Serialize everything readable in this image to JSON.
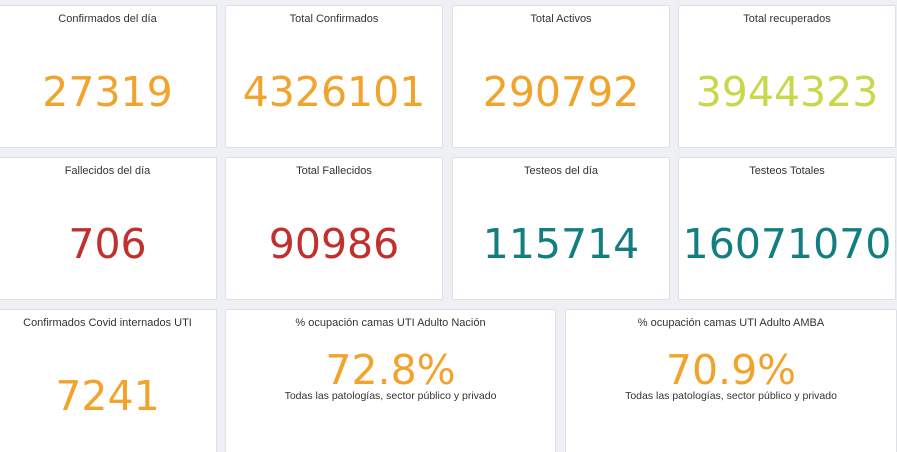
{
  "colors": {
    "orange": "#f2a32b",
    "lime": "#c9d74a",
    "red": "#c0302e",
    "teal": "#127e7f"
  },
  "cards": [
    {
      "label": "Confirmados del día",
      "value": "27319",
      "color": "#f2a32b"
    },
    {
      "label": "Total Confirmados",
      "value": "4326101",
      "color": "#f2a32b"
    },
    {
      "label": "Total Activos",
      "value": "290792",
      "color": "#f2a32b"
    },
    {
      "label": "Total recuperados",
      "value": "3944323",
      "color": "#c9d74a"
    },
    {
      "label": "Fallecidos del día",
      "value": "706",
      "color": "#c0302e"
    },
    {
      "label": "Total Fallecidos",
      "value": "90986",
      "color": "#c0302e"
    },
    {
      "label": "Testeos del día",
      "value": "115714",
      "color": "#127e7f"
    },
    {
      "label": "Testeos Totales",
      "value": "16071070",
      "color": "#127e7f"
    },
    {
      "label": "Confirmados Covid internados UTI",
      "value": "7241",
      "color": "#f2a32b"
    },
    {
      "label": "% ocupación camas UTI Adulto Nación",
      "value": "72.8%",
      "color": "#f2a32b",
      "note": "Todas las patologías, sector público y privado"
    },
    {
      "label": "% ocupación camas UTI Adulto AMBA",
      "value": "70.9%",
      "color": "#f2a32b",
      "note": "Todas las patologías, sector público y privado"
    }
  ]
}
